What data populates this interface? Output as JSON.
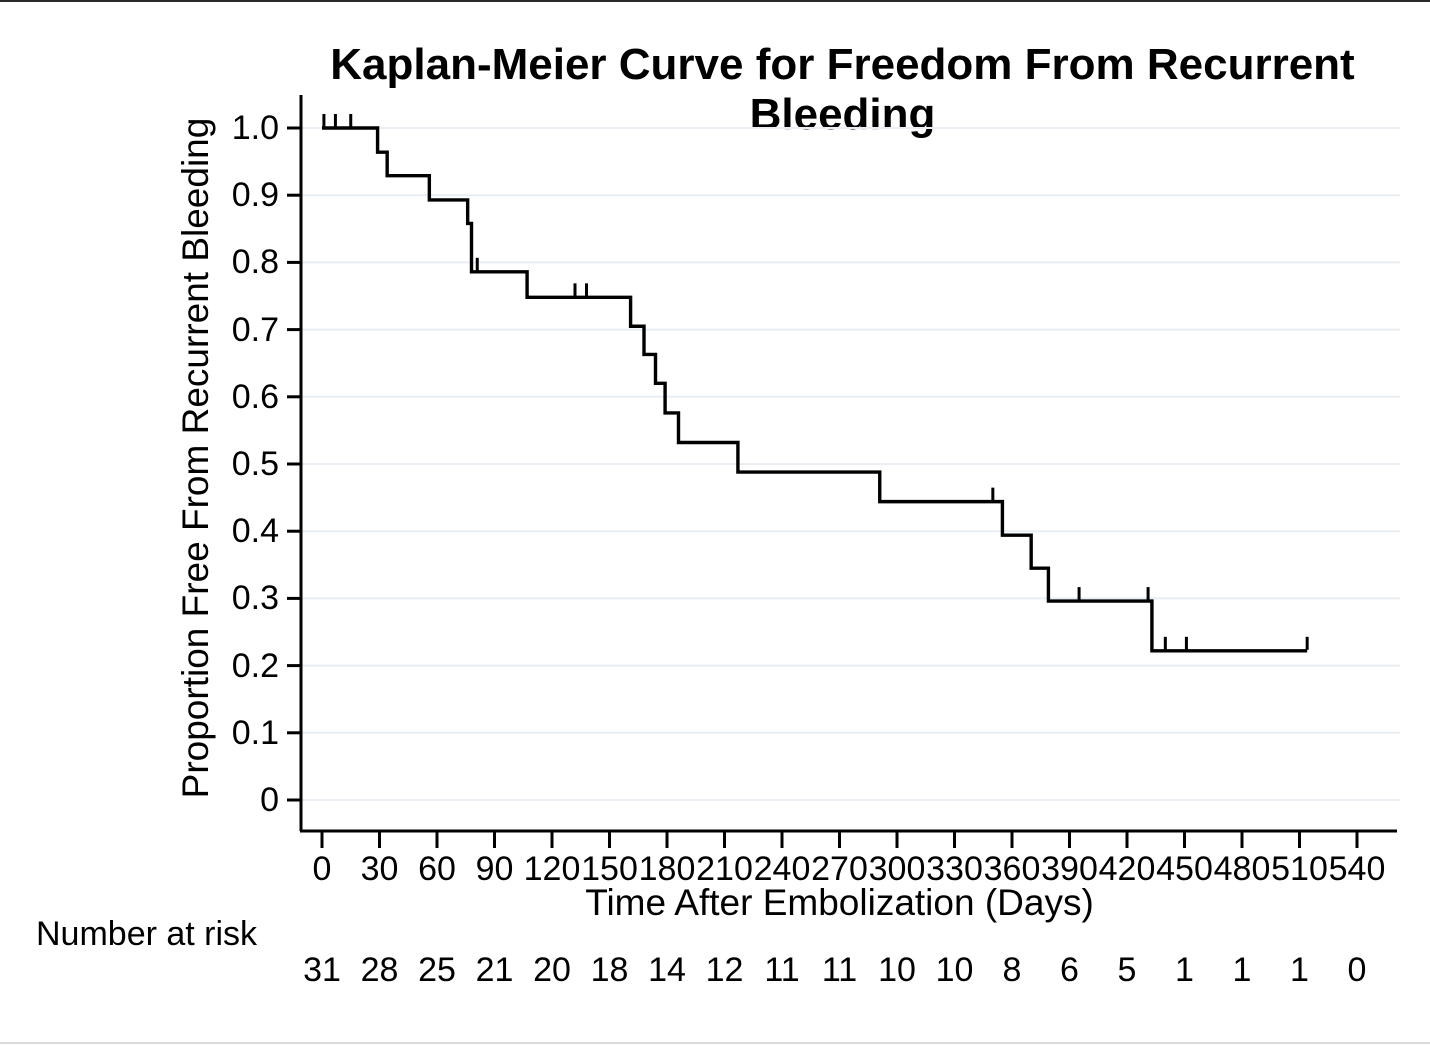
{
  "chart_data": {
    "type": "line",
    "subtype": "kaplan-meier-step",
    "title": "Kaplan-Meier Curve for Freedom From Recurrent Bleeding",
    "xlabel": "Time After Embolization (Days)",
    "ylabel": "Proportion Free From Recurrent Bleeding",
    "xlim": [
      0,
      540
    ],
    "ylim": [
      0,
      1.0
    ],
    "xticks": [
      0,
      30,
      60,
      90,
      120,
      150,
      180,
      210,
      240,
      270,
      300,
      330,
      360,
      390,
      420,
      450,
      480,
      510,
      540
    ],
    "yticks": [
      0,
      0.1,
      0.2,
      0.3,
      0.4,
      0.5,
      0.6,
      0.7,
      0.8,
      0.9,
      1.0
    ],
    "ytick_labels": [
      "0",
      "0.1",
      "0.2",
      "0.3",
      "0.4",
      "0.5",
      "0.6",
      "0.7",
      "0.8",
      "0.9",
      "1.0"
    ],
    "grid": "horizontal",
    "legend": "none",
    "line_color": "#000000",
    "grid_color": "#e8eef3",
    "axis_color": "#000000",
    "steps": [
      {
        "day": 0,
        "value": 1.0
      },
      {
        "day": 29,
        "value": 0.964
      },
      {
        "day": 34,
        "value": 0.929
      },
      {
        "day": 56,
        "value": 0.893
      },
      {
        "day": 76,
        "value": 0.858
      },
      {
        "day": 78,
        "value": 0.786
      },
      {
        "day": 107,
        "value": 0.748
      },
      {
        "day": 161,
        "value": 0.705
      },
      {
        "day": 168,
        "value": 0.663
      },
      {
        "day": 174,
        "value": 0.62
      },
      {
        "day": 179,
        "value": 0.576
      },
      {
        "day": 186,
        "value": 0.532
      },
      {
        "day": 217,
        "value": 0.488
      },
      {
        "day": 291,
        "value": 0.444
      },
      {
        "day": 355,
        "value": 0.394
      },
      {
        "day": 370,
        "value": 0.345
      },
      {
        "day": 379,
        "value": 0.296
      },
      {
        "day": 433,
        "value": 0.222
      }
    ],
    "end_day": 514,
    "censor_marks": [
      {
        "day": 1,
        "value": 1.0
      },
      {
        "day": 7,
        "value": 1.0
      },
      {
        "day": 15,
        "value": 1.0
      },
      {
        "day": 81,
        "value": 0.786
      },
      {
        "day": 132,
        "value": 0.748
      },
      {
        "day": 138,
        "value": 0.748
      },
      {
        "day": 350,
        "value": 0.444
      },
      {
        "day": 395,
        "value": 0.296
      },
      {
        "day": 431,
        "value": 0.296
      },
      {
        "day": 440,
        "value": 0.222
      },
      {
        "day": 451,
        "value": 0.222
      },
      {
        "day": 514,
        "value": 0.222
      }
    ],
    "number_at_risk": {
      "label": "Number at risk",
      "days": [
        0,
        30,
        60,
        90,
        120,
        150,
        180,
        210,
        240,
        270,
        300,
        330,
        360,
        390,
        420,
        450,
        480,
        510,
        540
      ],
      "counts": [
        31,
        28,
        25,
        21,
        20,
        18,
        14,
        12,
        11,
        11,
        10,
        10,
        8,
        6,
        5,
        1,
        1,
        1,
        0
      ]
    }
  }
}
